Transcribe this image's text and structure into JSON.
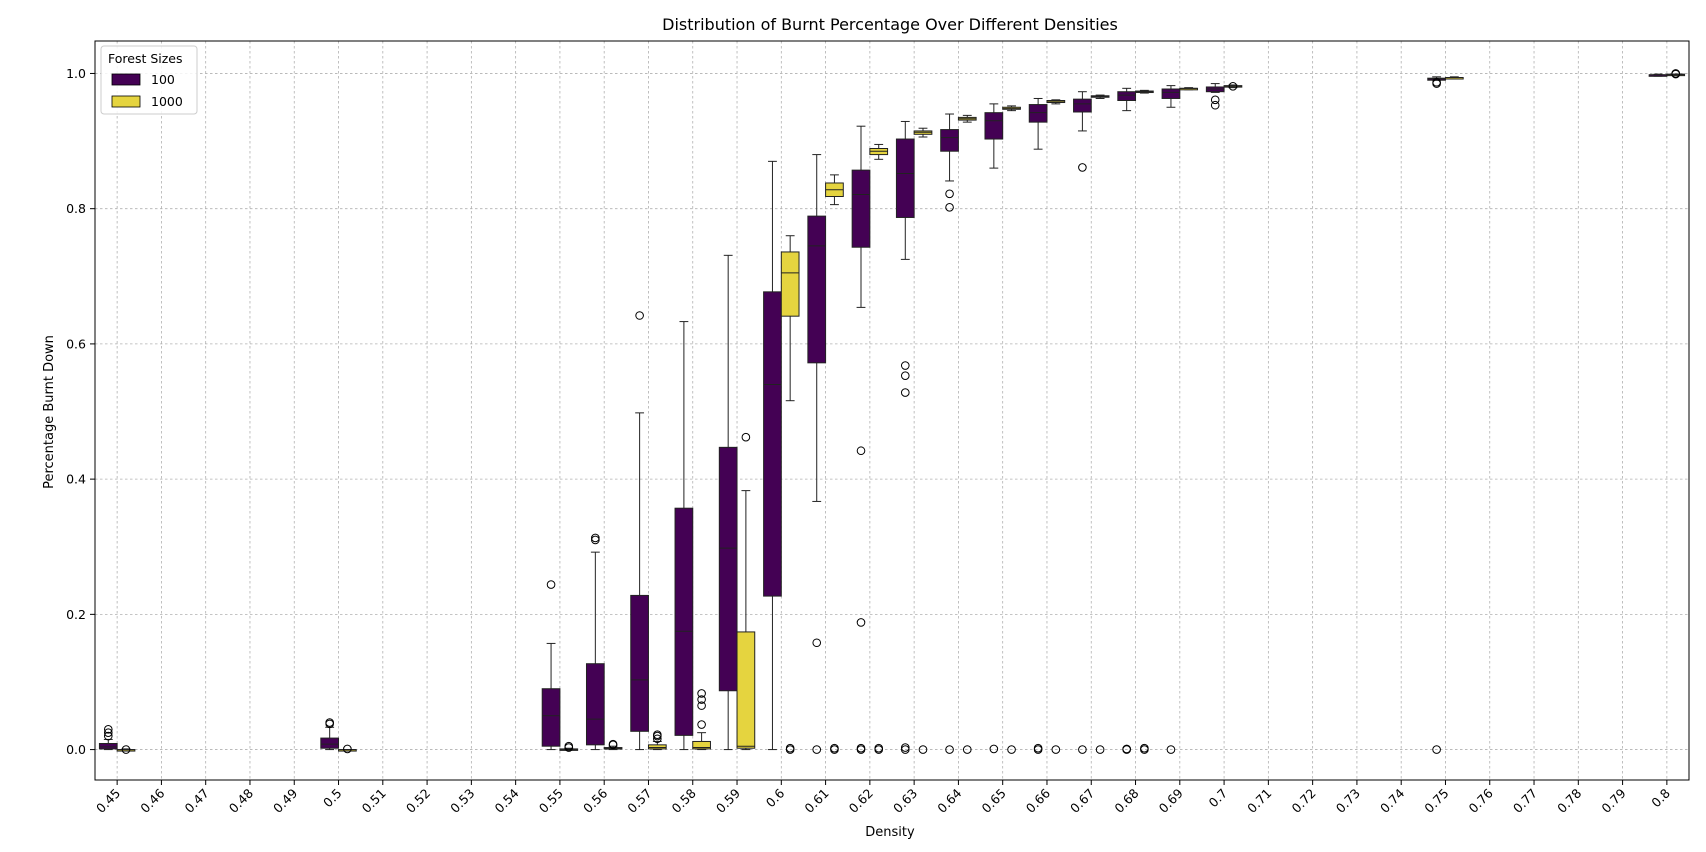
{
  "chart_data": {
    "type": "box",
    "title": "Distribution of Burnt Percentage Over Different Densities",
    "xlabel": "Density",
    "ylabel": "Percentage Burnt Down",
    "ylim": [
      -0.045,
      1.048
    ],
    "yticks": [
      "0.0",
      "0.2",
      "0.4",
      "0.6",
      "0.8",
      "1.0"
    ],
    "grid": true,
    "legend_position": "top-left",
    "legend_title": "Forest Sizes",
    "categories": [
      "0.45",
      "0.46",
      "0.47",
      "0.48",
      "0.49",
      "0.5",
      "0.51",
      "0.52",
      "0.53",
      "0.54",
      "0.55",
      "0.56",
      "0.57",
      "0.58",
      "0.59",
      "0.6",
      "0.61",
      "0.62",
      "0.63",
      "0.64",
      "0.65",
      "0.66",
      "0.67",
      "0.68",
      "0.69",
      "0.7",
      "0.71",
      "0.72",
      "0.73",
      "0.74",
      "0.75",
      "0.76",
      "0.77",
      "0.78",
      "0.79",
      "0.8"
    ],
    "series": [
      {
        "name": "100",
        "color": "#440154",
        "boxes": [
          {
            "category": "0.45",
            "whislo": 0.0,
            "q1": 0.001,
            "med": 0.004,
            "q3": 0.009,
            "whishi": 0.015,
            "fliers": [
              0.02,
              0.025,
              0.03
            ]
          },
          {
            "category": "0.5",
            "whislo": 0.0,
            "q1": 0.002,
            "med": 0.008,
            "q3": 0.017,
            "whishi": 0.033,
            "fliers": [
              0.038,
              0.04
            ]
          },
          {
            "category": "0.55",
            "whislo": 0.0,
            "q1": 0.005,
            "med": 0.05,
            "q3": 0.09,
            "whishi": 0.157,
            "fliers": [
              0.244
            ]
          },
          {
            "category": "0.56",
            "whislo": 0.0,
            "q1": 0.007,
            "med": 0.045,
            "q3": 0.127,
            "whishi": 0.292,
            "fliers": [
              0.31,
              0.313
            ]
          },
          {
            "category": "0.57",
            "whislo": 0.0,
            "q1": 0.027,
            "med": 0.103,
            "q3": 0.228,
            "whishi": 0.498,
            "fliers": [
              0.642
            ]
          },
          {
            "category": "0.58",
            "whislo": 0.0,
            "q1": 0.021,
            "med": 0.175,
            "q3": 0.357,
            "whishi": 0.633,
            "fliers": []
          },
          {
            "category": "0.59",
            "whislo": 0.0,
            "q1": 0.087,
            "med": 0.298,
            "q3": 0.447,
            "whishi": 0.731,
            "fliers": []
          },
          {
            "category": "0.6",
            "whislo": 0.0,
            "q1": 0.227,
            "med": 0.54,
            "q3": 0.677,
            "whishi": 0.87,
            "fliers": []
          },
          {
            "category": "0.61",
            "whislo": 0.367,
            "q1": 0.572,
            "med": 0.745,
            "q3": 0.789,
            "whishi": 0.88,
            "fliers": [
              0.158,
              0.0
            ]
          },
          {
            "category": "0.62",
            "whislo": 0.654,
            "q1": 0.743,
            "med": 0.821,
            "q3": 0.857,
            "whishi": 0.922,
            "fliers": [
              0.442,
              0.188,
              0.0,
              0.002
            ]
          },
          {
            "category": "0.63",
            "whislo": 0.725,
            "q1": 0.787,
            "med": 0.852,
            "q3": 0.903,
            "whishi": 0.929,
            "fliers": [
              0.568,
              0.553,
              0.528,
              0.0,
              0.003
            ]
          },
          {
            "category": "0.64",
            "whislo": 0.841,
            "q1": 0.885,
            "med": 0.905,
            "q3": 0.917,
            "whishi": 0.94,
            "fliers": [
              0.822,
              0.802,
              0.0
            ]
          },
          {
            "category": "0.65",
            "whislo": 0.86,
            "q1": 0.903,
            "med": 0.93,
            "q3": 0.942,
            "whishi": 0.955,
            "fliers": [
              0.001
            ]
          },
          {
            "category": "0.66",
            "whislo": 0.888,
            "q1": 0.928,
            "med": 0.942,
            "q3": 0.954,
            "whishi": 0.963,
            "fliers": [
              0.0,
              0.002
            ]
          },
          {
            "category": "0.67",
            "whislo": 0.915,
            "q1": 0.943,
            "med": 0.955,
            "q3": 0.962,
            "whishi": 0.973,
            "fliers": [
              0.861,
              0.0
            ]
          },
          {
            "category": "0.68",
            "whislo": 0.945,
            "q1": 0.96,
            "med": 0.968,
            "q3": 0.973,
            "whishi": 0.978,
            "fliers": [
              0.0,
              0.001
            ]
          },
          {
            "category": "0.69",
            "whislo": 0.95,
            "q1": 0.963,
            "med": 0.972,
            "q3": 0.977,
            "whishi": 0.982,
            "fliers": [
              0.0
            ]
          },
          {
            "category": "0.7",
            "whislo": 0.972,
            "q1": 0.973,
            "med": 0.977,
            "q3": 0.98,
            "whishi": 0.985,
            "fliers": [
              0.961,
              0.953
            ]
          },
          {
            "category": "0.75",
            "whislo": 0.99,
            "q1": 0.99,
            "med": 0.992,
            "q3": 0.993,
            "whishi": 0.995,
            "fliers": [
              0.985,
              0.987,
              0.0
            ]
          },
          {
            "category": "0.8",
            "whislo": 0.996,
            "q1": 0.997,
            "med": 0.998,
            "q3": 0.998,
            "whishi": 0.999,
            "fliers": []
          }
        ]
      },
      {
        "name": "1000",
        "color": "#e5d43f",
        "boxes": [
          {
            "category": "0.45",
            "whislo": 0.0,
            "q1": 0.0,
            "med": 0.0,
            "q3": 0.0,
            "whishi": 0.001,
            "fliers": [
              0.0
            ]
          },
          {
            "category": "0.5",
            "whislo": 0.0,
            "q1": 0.0,
            "med": 0.0,
            "q3": 0.0,
            "whishi": 0.0,
            "fliers": [
              0.001
            ]
          },
          {
            "category": "0.55",
            "whislo": 0.0,
            "q1": 0.0,
            "med": 0.0,
            "q3": 0.001,
            "whishi": 0.002,
            "fliers": [
              0.003,
              0.005
            ]
          },
          {
            "category": "0.56",
            "whislo": 0.0,
            "q1": 0.001,
            "med": 0.002,
            "q3": 0.003,
            "whishi": 0.005,
            "fliers": [
              0.007,
              0.008
            ]
          },
          {
            "category": "0.57",
            "whislo": 0.0,
            "q1": 0.001,
            "med": 0.003,
            "q3": 0.007,
            "whishi": 0.012,
            "fliers": [
              0.016,
              0.02,
              0.022
            ]
          },
          {
            "category": "0.58",
            "whislo": 0.0,
            "q1": 0.001,
            "med": 0.003,
            "q3": 0.012,
            "whishi": 0.025,
            "fliers": [
              0.037,
              0.065,
              0.074,
              0.083
            ]
          },
          {
            "category": "0.59",
            "whislo": 0.0,
            "q1": 0.002,
            "med": 0.005,
            "q3": 0.174,
            "whishi": 0.383,
            "fliers": [
              0.462
            ]
          },
          {
            "category": "0.6",
            "whislo": 0.516,
            "q1": 0.641,
            "med": 0.705,
            "q3": 0.736,
            "whishi": 0.76,
            "fliers": [
              0.0,
              0.002
            ]
          },
          {
            "category": "0.61",
            "whislo": 0.806,
            "q1": 0.818,
            "med": 0.828,
            "q3": 0.838,
            "whishi": 0.85,
            "fliers": [
              0.0,
              0.002
            ]
          },
          {
            "category": "0.62",
            "whislo": 0.873,
            "q1": 0.88,
            "med": 0.885,
            "q3": 0.889,
            "whishi": 0.895,
            "fliers": [
              0.0,
              0.002
            ]
          },
          {
            "category": "0.63",
            "whislo": 0.906,
            "q1": 0.91,
            "med": 0.913,
            "q3": 0.915,
            "whishi": 0.919,
            "fliers": [
              0.0
            ]
          },
          {
            "category": "0.64",
            "whislo": 0.928,
            "q1": 0.931,
            "med": 0.933,
            "q3": 0.935,
            "whishi": 0.938,
            "fliers": [
              0.0
            ]
          },
          {
            "category": "0.65",
            "whislo": 0.945,
            "q1": 0.947,
            "med": 0.948,
            "q3": 0.95,
            "whishi": 0.952,
            "fliers": [
              0.0
            ]
          },
          {
            "category": "0.66",
            "whislo": 0.955,
            "q1": 0.957,
            "med": 0.958,
            "q3": 0.96,
            "whishi": 0.961,
            "fliers": [
              0.0
            ]
          },
          {
            "category": "0.67",
            "whislo": 0.963,
            "q1": 0.965,
            "med": 0.966,
            "q3": 0.967,
            "whishi": 0.968,
            "fliers": [
              0.0
            ]
          },
          {
            "category": "0.68",
            "whislo": 0.971,
            "q1": 0.972,
            "med": 0.973,
            "q3": 0.974,
            "whishi": 0.975,
            "fliers": [
              0.0,
              0.002
            ]
          },
          {
            "category": "0.69",
            "whislo": 0.976,
            "q1": 0.977,
            "med": 0.978,
            "q3": 0.978,
            "whishi": 0.979,
            "fliers": []
          },
          {
            "category": "0.7",
            "whislo": 0.979,
            "q1": 0.98,
            "med": 0.981,
            "q3": 0.982,
            "whishi": 0.983,
            "fliers": [
              0.981
            ]
          },
          {
            "category": "0.75",
            "whislo": 0.993,
            "q1": 0.993,
            "med": 0.994,
            "q3": 0.994,
            "whishi": 0.995,
            "fliers": []
          },
          {
            "category": "0.8",
            "whislo": 0.997,
            "q1": 0.998,
            "med": 0.998,
            "q3": 0.999,
            "whishi": 0.999,
            "fliers": [
              0.999,
              1.0
            ]
          }
        ]
      }
    ]
  }
}
